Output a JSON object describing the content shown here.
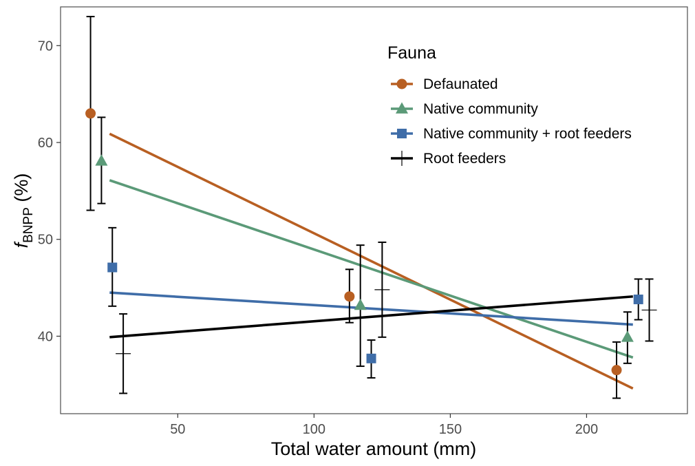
{
  "chart_data": {
    "type": "scatter",
    "title": "",
    "xlabel": "Total water amount (mm)",
    "ylabel": {
      "italic": "f",
      "subscript": "BNPP",
      "suffix": " (%)"
    },
    "xlim": [
      7,
      237
    ],
    "ylim": [
      32,
      74
    ],
    "x_ticks": [
      50,
      100,
      150,
      200
    ],
    "y_ticks": [
      40,
      50,
      60,
      70
    ],
    "grid": false,
    "legend": {
      "title": "Fauna",
      "position": "top-right"
    },
    "series": [
      {
        "name": "Defaunated",
        "color": "#b85f22",
        "marker": "circle",
        "points": [
          {
            "x": 18,
            "y": 63.0,
            "lo": 53.0,
            "hi": 73.0
          },
          {
            "x": 113,
            "y": 44.1,
            "lo": 41.4,
            "hi": 46.9
          },
          {
            "x": 211,
            "y": 36.5,
            "lo": 33.6,
            "hi": 39.4
          }
        ],
        "fit": {
          "x1": 25,
          "y1": 60.9,
          "x2": 217,
          "y2": 34.6
        }
      },
      {
        "name": "Native community",
        "color": "#5b9a78",
        "marker": "triangle",
        "points": [
          {
            "x": 22,
            "y": 58.1,
            "lo": 53.7,
            "hi": 62.6
          },
          {
            "x": 117,
            "y": 43.2,
            "lo": 36.9,
            "hi": 49.4
          },
          {
            "x": 215,
            "y": 39.9,
            "lo": 37.2,
            "hi": 42.5
          }
        ],
        "fit": {
          "x1": 25,
          "y1": 56.1,
          "x2": 217,
          "y2": 37.8
        }
      },
      {
        "name": "Native community + root feeders",
        "color": "#3f6da8",
        "marker": "square",
        "points": [
          {
            "x": 26,
            "y": 47.1,
            "lo": 43.1,
            "hi": 51.2
          },
          {
            "x": 121,
            "y": 37.7,
            "lo": 35.7,
            "hi": 39.6
          },
          {
            "x": 219,
            "y": 43.8,
            "lo": 41.7,
            "hi": 45.9
          }
        ],
        "fit": {
          "x1": 25,
          "y1": 44.5,
          "x2": 217,
          "y2": 41.2
        }
      },
      {
        "name": "Root feeders",
        "color": "#000000",
        "marker": "cross",
        "points": [
          {
            "x": 30,
            "y": 38.2,
            "lo": 34.1,
            "hi": 42.3
          },
          {
            "x": 125,
            "y": 44.8,
            "lo": 39.9,
            "hi": 49.7
          },
          {
            "x": 223,
            "y": 42.7,
            "lo": 39.5,
            "hi": 45.9
          }
        ],
        "fit": {
          "x1": 25,
          "y1": 39.9,
          "x2": 217,
          "y2": 44.1
        }
      }
    ]
  }
}
